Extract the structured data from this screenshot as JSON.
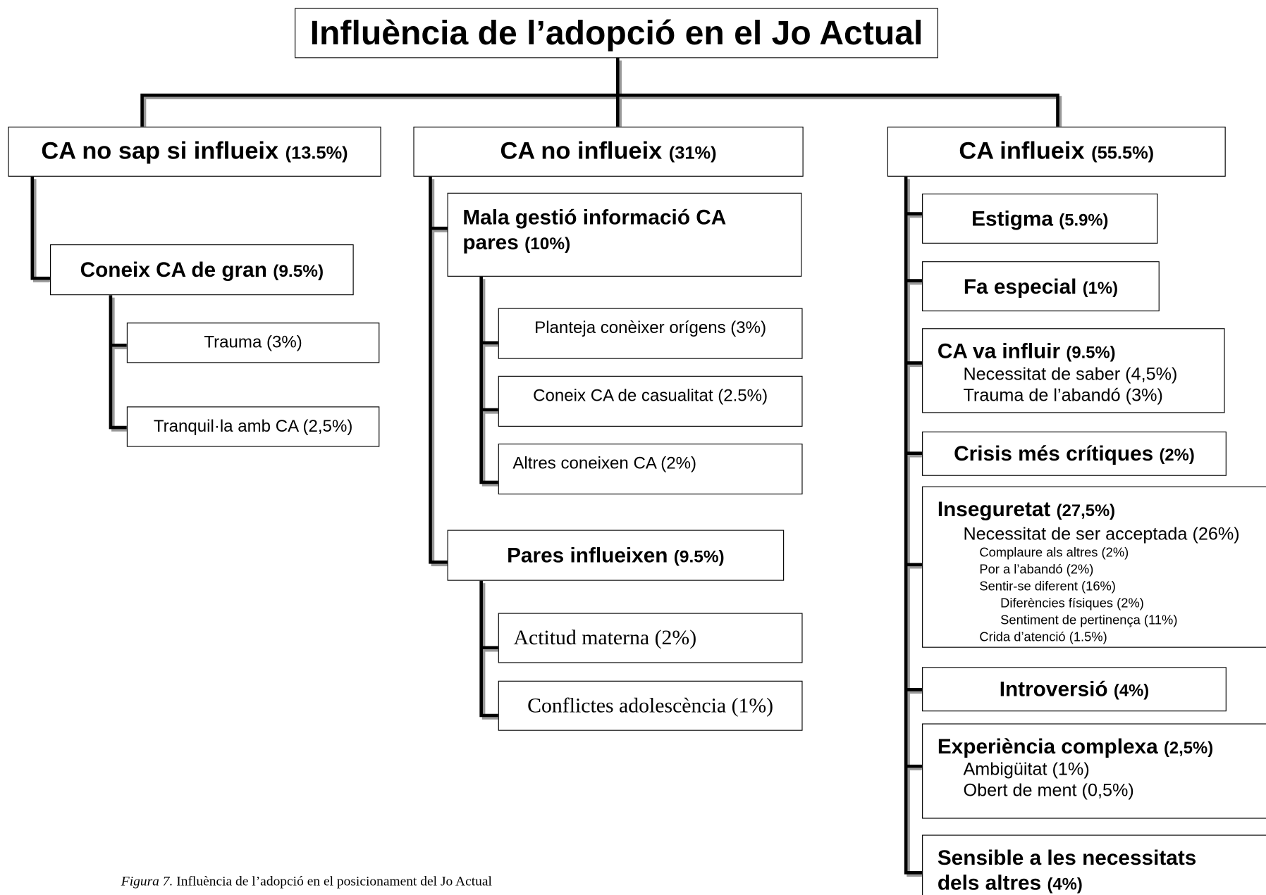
{
  "title": "Influència de l’adopció en el Jo Actual",
  "branches": [
    {
      "label": "CA no sap si influeix",
      "share": "(13.5%)",
      "children": [
        {
          "label": "Coneix CA de gran",
          "share": "(9.5%)",
          "children": [
            "Trauma (3%)",
            "Tranquil·la amb CA (2,5%)"
          ]
        }
      ]
    },
    {
      "label": "CA no influeix",
      "share": "(31%)",
      "children": [
        {
          "label": "Mala gestió informació CA pares",
          "share": "(10%)",
          "children": [
            "Planteja conèixer orígens (3%)",
            "Coneix CA de casualitat (2.5%)",
            "Altres coneixen CA (2%)"
          ]
        },
        {
          "label": "Pares influeixen",
          "share": "(9.5%)",
          "children": [
            "Actitud materna (2%)",
            "Conflictes adolescència (1%)"
          ]
        }
      ]
    },
    {
      "label": "CA influeix",
      "share": "(55.5%)",
      "children": [
        {
          "label": "Estigma",
          "share": "(5.9%)"
        },
        {
          "label": "Fa especial",
          "share": "(1%)"
        },
        {
          "label": "CA va influir",
          "share": "(9.5%)",
          "children": [
            {
              "text": "Necessitat de saber (4,5%)"
            },
            {
              "text": "Trauma de l’abandó (3%)"
            }
          ]
        },
        {
          "label": "Crisis més crítiques",
          "share": "(2%)"
        },
        {
          "label": "Inseguretat",
          "share": "(27,5%)",
          "children": [
            {
              "text": "Necessitat de ser acceptada (26%)",
              "children": [
                {
                  "text": "Complaure als altres (2%)"
                },
                {
                  "text": "Por a l’abandó (2%)"
                },
                {
                  "text": "Sentir-se diferent (16%)",
                  "children": [
                    {
                      "text": "Diferències físiques (2%)"
                    },
                    {
                      "text": "Sentiment de pertinença (11%)"
                    }
                  ]
                },
                {
                  "text": "Crida d’atenció (1.5%)"
                }
              ]
            }
          ]
        },
        {
          "label": "Introversió",
          "share": "(4%)"
        },
        {
          "label": "Experiència complexa",
          "share": "(2,5%)",
          "children": [
            {
              "text": "Ambigüitat (1%)"
            },
            {
              "text": "Obert de ment (0,5%)"
            }
          ]
        },
        {
          "label": "Sensible a les necessitats dels altres",
          "share": "(4%)"
        }
      ]
    }
  ],
  "caption": {
    "figure": "Figura 7.",
    "text": "Influència de l’adopció en el posicionament del Jo Actual"
  }
}
